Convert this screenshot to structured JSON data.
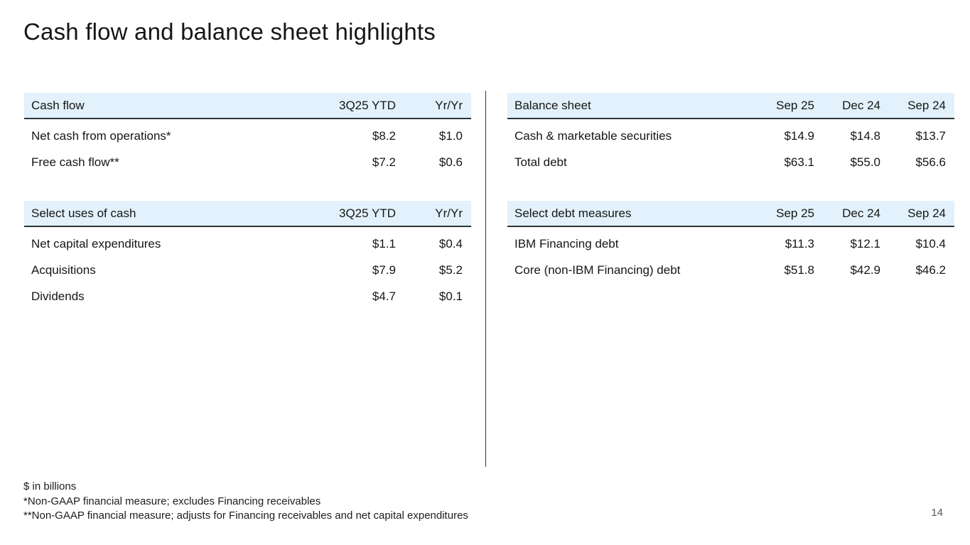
{
  "slide": {
    "title": "Cash flow and balance sheet highlights",
    "page_number": "14"
  },
  "colors": {
    "header_band": "#e2f1fb",
    "rule": "#2e3438",
    "text": "#161616",
    "page_number": "#595959"
  },
  "tables": [
    {
      "id": "cash-flow",
      "title": "Cash flow",
      "columns": [
        "3Q25 YTD",
        "Yr/Yr"
      ],
      "rows": [
        {
          "label": "Net cash from operations*",
          "values": [
            "$8.2",
            "$1.0"
          ]
        },
        {
          "label": "Free cash flow**",
          "values": [
            "$7.2",
            "$0.6"
          ]
        }
      ]
    },
    {
      "id": "select-uses-of-cash",
      "title": "Select uses of cash",
      "columns": [
        "3Q25 YTD",
        "Yr/Yr"
      ],
      "rows": [
        {
          "label": "Net capital expenditures",
          "values": [
            "$1.1",
            "$0.4"
          ]
        },
        {
          "label": "Acquisitions",
          "values": [
            "$7.9",
            "$5.2"
          ]
        },
        {
          "label": "Dividends",
          "values": [
            "$4.7",
            "$0.1"
          ]
        }
      ]
    },
    {
      "id": "balance-sheet",
      "title": "Balance sheet",
      "columns": [
        "Sep 25",
        "Dec 24",
        "Sep 24"
      ],
      "rows": [
        {
          "label": "Cash & marketable securities",
          "values": [
            "$14.9",
            "$14.8",
            "$13.7"
          ]
        },
        {
          "label": "Total debt",
          "values": [
            "$63.1",
            "$55.0",
            "$56.6"
          ]
        }
      ]
    },
    {
      "id": "select-debt-measures",
      "title": "Select debt measures",
      "columns": [
        "Sep 25",
        "Dec 24",
        "Sep 24"
      ],
      "rows": [
        {
          "label": "IBM Financing debt",
          "values": [
            "$11.3",
            "$12.1",
            "$10.4"
          ]
        },
        {
          "label": "Core (non-IBM Financing) debt",
          "values": [
            "$51.8",
            "$42.9",
            "$46.2"
          ]
        }
      ]
    }
  ],
  "footnotes": {
    "line1": "$ in billions",
    "line2": "*Non-GAAP financial measure; excludes Financing receivables",
    "line3": "**Non-GAAP financial measure; adjusts for Financing receivables and net capital expenditures"
  }
}
